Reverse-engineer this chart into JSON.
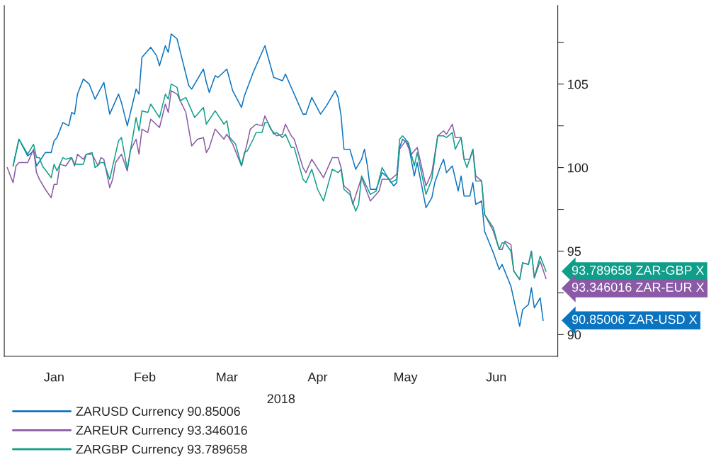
{
  "chart_data": {
    "type": "line",
    "xlabel": "2018",
    "xlim": [
      "2017-12-15",
      "2018-06-22"
    ],
    "xticks": [
      {
        "value": "2018-01-01",
        "label": "Jan"
      },
      {
        "value": "2018-02-01",
        "label": "Feb"
      },
      {
        "value": "2018-03-01",
        "label": "Mar"
      },
      {
        "value": "2018-04-01",
        "label": "Apr"
      },
      {
        "value": "2018-05-01",
        "label": "May"
      },
      {
        "value": "2018-06-01",
        "label": "Jun"
      }
    ],
    "ylim": [
      88.7,
      109.7
    ],
    "yticks": [
      90,
      {
        "value": 92.5,
        "label": null
      },
      95,
      {
        "value": 97.5,
        "label": null
      },
      100,
      {
        "value": 102.5,
        "label": null
      },
      105,
      {
        "value": 107.5,
        "label": null
      }
    ],
    "grid": false,
    "legend": "bottom left",
    "line_style": "solid",
    "marker": "none",
    "series": [
      {
        "name": "ZARUSD Currency 90.85006",
        "color": "#0a74c0",
        "x": [
          "2017-12-18",
          "2017-12-20",
          "2017-12-23",
          "2017-12-25",
          "2017-12-26",
          "2017-12-29",
          "2017-12-31",
          "2018-01-01",
          "2018-01-02",
          "2018-01-04",
          "2018-01-06",
          "2018-01-07",
          "2018-01-08",
          "2018-01-09",
          "2018-01-11",
          "2018-01-13",
          "2018-01-15",
          "2018-01-18",
          "2018-01-20",
          "2018-01-23",
          "2018-01-24",
          "2018-01-26",
          "2018-01-29",
          "2018-01-30",
          "2018-01-31",
          "2018-02-03",
          "2018-02-05",
          "2018-02-06",
          "2018-02-08",
          "2018-02-09",
          "2018-02-10",
          "2018-02-12",
          "2018-02-16",
          "2018-02-17",
          "2018-02-21",
          "2018-02-22",
          "2018-02-23",
          "2018-02-25",
          "2018-02-26",
          "2018-03-01",
          "2018-03-03",
          "2018-03-06",
          "2018-03-07",
          "2018-03-10",
          "2018-03-14",
          "2018-03-17",
          "2018-03-20",
          "2018-03-21",
          "2018-03-27",
          "2018-03-28",
          "2018-03-30",
          "2018-04-02",
          "2018-04-04",
          "2018-04-07",
          "2018-04-08",
          "2018-04-09",
          "2018-04-10",
          "2018-04-12",
          "2018-04-14",
          "2018-04-16",
          "2018-04-17",
          "2018-04-18",
          "2018-04-19",
          "2018-04-21",
          "2018-04-23",
          "2018-04-25",
          "2018-04-27",
          "2018-04-28",
          "2018-04-29",
          "2018-04-30",
          "2018-05-02",
          "2018-05-04",
          "2018-05-05",
          "2018-05-08",
          "2018-05-10",
          "2018-05-11",
          "2018-05-13",
          "2018-05-14",
          "2018-05-15",
          "2018-05-17",
          "2018-05-19",
          "2018-05-20",
          "2018-05-21",
          "2018-05-23",
          "2018-05-24",
          "2018-05-25",
          "2018-05-27",
          "2018-05-28",
          "2018-05-31",
          "2018-06-02",
          "2018-06-03",
          "2018-06-06",
          "2018-06-09",
          "2018-06-10",
          "2018-06-12",
          "2018-06-13",
          "2018-06-14",
          "2018-06-16",
          "2018-06-17"
        ],
        "values": [
          100.1,
          101.7,
          100.7,
          101,
          100.1,
          100.9,
          100.9,
          101.6,
          101.8,
          102.7,
          102.5,
          103.3,
          103.2,
          104.4,
          105.3,
          105,
          104.1,
          105.1,
          103.2,
          104.4,
          103.9,
          102.5,
          104.7,
          104.4,
          106.6,
          107.2,
          106.7,
          106.1,
          107.3,
          106.9,
          108,
          107.7,
          104.9,
          104.7,
          105.9,
          105.1,
          104.5,
          105.5,
          105.4,
          105.9,
          104.6,
          103.6,
          104.3,
          105.7,
          107.3,
          105.4,
          105.2,
          105.6,
          103.2,
          103.2,
          104.2,
          103.2,
          103.7,
          104.6,
          104.2,
          103.1,
          101.1,
          101.1,
          99.9,
          100.5,
          101.1,
          100.1,
          98.7,
          98.7,
          99.7,
          99.4,
          98.9,
          99.1,
          101.2,
          101.7,
          101.4,
          99.5,
          100.3,
          97.6,
          98.2,
          99.1,
          100.1,
          100.5,
          99.7,
          100.1,
          98.6,
          99.5,
          98.3,
          98.3,
          99.1,
          97.8,
          98,
          96.2,
          94.9,
          93.9,
          94.2,
          92.9,
          90.5,
          91.5,
          91.8,
          92.8,
          91.6,
          92.2,
          90.85
        ]
      },
      {
        "name": "ZAREUR Currency 93.346016",
        "color": "#8a5aa6",
        "x": [
          "2017-12-16",
          "2017-12-18",
          "2017-12-19",
          "2017-12-20",
          "2017-12-22",
          "2017-12-23",
          "2017-12-25",
          "2017-12-26",
          "2017-12-27",
          "2017-12-29",
          "2017-12-31",
          "2018-01-01",
          "2018-01-02",
          "2018-01-03",
          "2018-01-05",
          "2018-01-07",
          "2018-01-08",
          "2018-01-09",
          "2018-01-11",
          "2018-01-12",
          "2018-01-14",
          "2018-01-16",
          "2018-01-17",
          "2018-01-18",
          "2018-01-20",
          "2018-01-21",
          "2018-01-22",
          "2018-01-24",
          "2018-01-26",
          "2018-01-27",
          "2018-01-29",
          "2018-01-30",
          "2018-01-31",
          "2018-02-02",
          "2018-02-03",
          "2018-02-06",
          "2018-02-08",
          "2018-02-09",
          "2018-02-10",
          "2018-02-12",
          "2018-02-15",
          "2018-02-17",
          "2018-02-19",
          "2018-02-21",
          "2018-02-22",
          "2018-02-23",
          "2018-02-25",
          "2018-02-28",
          "2018-03-01",
          "2018-03-03",
          "2018-03-06",
          "2018-03-08",
          "2018-03-09",
          "2018-03-11",
          "2018-03-13",
          "2018-03-14",
          "2018-03-16",
          "2018-03-18",
          "2018-03-20",
          "2018-03-21",
          "2018-03-23",
          "2018-03-24",
          "2018-03-27",
          "2018-03-28",
          "2018-03-30",
          "2018-04-03",
          "2018-04-05",
          "2018-04-06",
          "2018-04-08",
          "2018-04-09",
          "2018-04-10",
          "2018-04-12",
          "2018-04-13",
          "2018-04-16",
          "2018-04-19",
          "2018-04-22",
          "2018-04-23",
          "2018-04-26",
          "2018-04-28",
          "2018-04-29",
          "2018-05-01",
          "2018-05-03",
          "2018-05-05",
          "2018-05-08",
          "2018-05-10",
          "2018-05-12",
          "2018-05-14",
          "2018-05-15",
          "2018-05-17",
          "2018-05-18",
          "2018-05-20",
          "2018-05-21",
          "2018-05-23",
          "2018-05-24",
          "2018-05-25",
          "2018-05-27",
          "2018-05-28",
          "2018-05-31",
          "2018-06-02",
          "2018-06-03",
          "2018-06-04",
          "2018-06-06",
          "2018-06-07",
          "2018-06-09",
          "2018-06-10",
          "2018-06-12",
          "2018-06-13",
          "2018-06-14",
          "2018-06-16",
          "2018-06-18"
        ],
        "values": [
          100,
          99.1,
          100.1,
          100.3,
          100.3,
          100.3,
          101.1,
          99.7,
          99.3,
          98.7,
          98.2,
          99,
          99,
          100.2,
          100.1,
          100.6,
          100.1,
          100.8,
          100.5,
          100.8,
          100.8,
          100.1,
          100.6,
          100.5,
          98.8,
          99.3,
          100.3,
          100.8,
          99.8,
          101,
          101.7,
          100.8,
          102.3,
          102.1,
          102.9,
          102.4,
          103.8,
          103.3,
          104.6,
          104.4,
          103.3,
          101.3,
          101.7,
          101.8,
          100.9,
          101.2,
          102.3,
          101.7,
          102,
          101.4,
          100.1,
          101.5,
          102.3,
          102.6,
          102.5,
          103.1,
          102.3,
          101.9,
          102,
          102.6,
          101.9,
          101.7,
          100,
          99.7,
          100.5,
          99.4,
          100.2,
          100.6,
          100.6,
          100,
          98.9,
          98.6,
          97.8,
          99.4,
          98,
          98.6,
          99.3,
          99.3,
          99.6,
          101.1,
          101.6,
          100.8,
          101.2,
          98.9,
          99.7,
          101.9,
          102.2,
          102,
          102.6,
          101.8,
          101.8,
          100.5,
          100.5,
          101.1,
          99.5,
          99.2,
          97.2,
          96.2,
          95.1,
          95.1,
          95.6,
          95.4,
          93.8,
          93.3,
          94.3,
          94.2,
          95,
          93.4,
          94.4,
          93.35
        ]
      },
      {
        "name": "ZARGBP Currency 93.789658",
        "color": "#0f9e8a",
        "x": [
          "2017-12-18",
          "2017-12-20",
          "2017-12-23",
          "2017-12-25",
          "2017-12-26",
          "2017-12-27",
          "2017-12-28",
          "2017-12-31",
          "2018-01-01",
          "2018-01-02",
          "2018-01-04",
          "2018-01-05",
          "2018-01-07",
          "2018-01-08",
          "2018-01-11",
          "2018-01-12",
          "2018-01-14",
          "2018-01-15",
          "2018-01-17",
          "2018-01-18",
          "2018-01-20",
          "2018-01-23",
          "2018-01-24",
          "2018-01-26",
          "2018-01-29",
          "2018-01-30",
          "2018-01-31",
          "2018-02-02",
          "2018-02-03",
          "2018-02-06",
          "2018-02-08",
          "2018-02-09",
          "2018-02-10",
          "2018-02-12",
          "2018-02-13",
          "2018-02-15",
          "2018-02-18",
          "2018-02-21",
          "2018-02-22",
          "2018-02-25",
          "2018-02-28",
          "2018-03-01",
          "2018-03-02",
          "2018-03-04",
          "2018-03-06",
          "2018-03-07",
          "2018-03-08",
          "2018-03-10",
          "2018-03-11",
          "2018-03-13",
          "2018-03-14",
          "2018-03-15",
          "2018-03-17",
          "2018-03-18",
          "2018-03-20",
          "2018-03-21",
          "2018-03-23",
          "2018-03-24",
          "2018-03-27",
          "2018-03-28",
          "2018-03-30",
          "2018-04-01",
          "2018-04-03",
          "2018-04-06",
          "2018-04-08",
          "2018-04-09",
          "2018-04-10",
          "2018-04-12",
          "2018-04-14",
          "2018-04-15",
          "2018-04-16",
          "2018-04-19",
          "2018-04-21",
          "2018-04-23",
          "2018-04-26",
          "2018-04-28",
          "2018-04-29",
          "2018-04-30",
          "2018-05-02",
          "2018-05-04",
          "2018-05-05",
          "2018-05-08",
          "2018-05-10",
          "2018-05-12",
          "2018-05-14",
          "2018-05-15",
          "2018-05-17",
          "2018-05-18",
          "2018-05-20",
          "2018-05-21",
          "2018-05-22",
          "2018-05-24",
          "2018-05-25",
          "2018-05-27",
          "2018-05-28",
          "2018-05-31",
          "2018-06-02",
          "2018-06-03",
          "2018-06-04",
          "2018-06-06",
          "2018-06-07",
          "2018-06-09",
          "2018-06-10",
          "2018-06-12",
          "2018-06-13",
          "2018-06-14",
          "2018-06-16",
          "2018-06-18"
        ],
        "values": [
          100.1,
          101.7,
          100.8,
          101.4,
          100.6,
          100.6,
          100.1,
          99.4,
          100.2,
          99.8,
          100.6,
          100.5,
          100.6,
          100.2,
          100.2,
          100.8,
          100.9,
          100,
          100.3,
          100.3,
          99.3,
          101.6,
          101.8,
          99.9,
          103,
          102.2,
          103.4,
          103.3,
          103.8,
          103,
          104.4,
          104.1,
          105,
          104.8,
          104,
          104.2,
          103,
          103.6,
          102.6,
          103.4,
          102.6,
          102.8,
          101.8,
          101.4,
          100.1,
          100.9,
          101,
          101.7,
          102.1,
          102.1,
          102.7,
          102.7,
          102,
          102.1,
          101.8,
          102,
          101.2,
          101.2,
          99.3,
          99.1,
          99.9,
          98.7,
          98,
          99.9,
          99.7,
          99.9,
          98.7,
          98.4,
          97.4,
          97.8,
          99.5,
          98.4,
          98.6,
          100,
          99.1,
          99.3,
          101.7,
          101.9,
          101.5,
          100.1,
          100.9,
          98.4,
          99.3,
          101.9,
          101.9,
          101.8,
          102.1,
          101.1,
          101.8,
          100.5,
          100,
          101.1,
          99.2,
          99.2,
          97.2,
          96.4,
          95.1,
          95.5,
          95.5,
          95,
          93.8,
          93.3,
          94.3,
          94.2,
          95,
          93.4,
          94.7,
          93.79
        ]
      }
    ],
    "annotations": [
      "90.85006 ZAR-USD X",
      "93.346016 ZAR-EUR X",
      "93.789658 ZAR-GBP X"
    ]
  }
}
